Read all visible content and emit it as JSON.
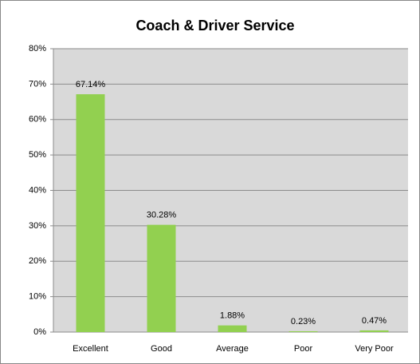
{
  "chart_data": {
    "type": "bar",
    "title": "Coach & Driver Service",
    "categories": [
      "Excellent",
      "Good",
      "Average",
      "Poor",
      "Very Poor"
    ],
    "values": [
      67.14,
      30.28,
      1.88,
      0.23,
      0.47
    ],
    "value_labels": [
      "67.14%",
      "30.28%",
      "1.88%",
      "0.23%",
      "0.47%"
    ],
    "color": "#92d050",
    "ylim": [
      0,
      80
    ],
    "yticks": [
      {
        "value": 0,
        "label": "0%"
      },
      {
        "value": 10,
        "label": "10%"
      },
      {
        "value": 20,
        "label": "20%"
      },
      {
        "value": 30,
        "label": "30%"
      },
      {
        "value": 40,
        "label": "40%"
      },
      {
        "value": 50,
        "label": "50%"
      },
      {
        "value": 60,
        "label": "60%"
      },
      {
        "value": 70,
        "label": "70%"
      },
      {
        "value": 80,
        "label": "80%"
      }
    ],
    "grid": true
  }
}
